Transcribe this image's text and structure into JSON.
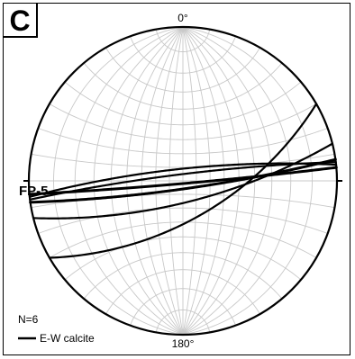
{
  "panel_label": "C",
  "north_label": "0°",
  "south_label": "180°",
  "site_label": "FP-5",
  "count_label": "N=6",
  "legend": {
    "label": "E-W calcite",
    "color": "#000000"
  },
  "net": {
    "type": "equal-angle stereonet",
    "grid_interval_deg": 10,
    "grid_color": "#c8c8c8"
  },
  "planes": [
    {
      "strike": 82,
      "dip": 84
    },
    {
      "strike": 85,
      "dip": 88
    },
    {
      "strike": 263,
      "dip": 85
    },
    {
      "strike": 264,
      "dip": 81
    },
    {
      "strike": 76,
      "dip": 74
    },
    {
      "strike": 60,
      "dip": 62
    }
  ]
}
